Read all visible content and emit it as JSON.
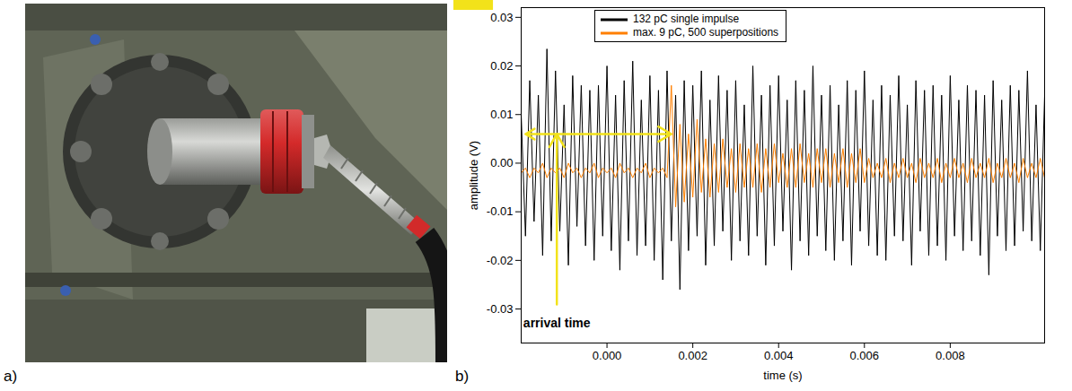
{
  "figure": {
    "panel_labels": [
      "a)",
      "b)"
    ]
  },
  "chart_data": {
    "type": "line",
    "x_label": "time (s)",
    "y_label": "amplitude (V)",
    "xlim": [
      -0.002,
      0.0102
    ],
    "ylim": [
      -0.037,
      0.032
    ],
    "xticks": [
      {
        "value": 0,
        "label": "0.000"
      },
      0.002,
      0.004,
      0.006,
      0.008
    ],
    "yticks": [
      -0.03,
      -0.02,
      -0.01,
      {
        "value": 0,
        "label": "0.00"
      },
      0.01,
      0.02,
      0.03
    ],
    "grid": false,
    "legend": "top",
    "x": [
      -0.002,
      -0.0019,
      -0.0018,
      -0.0017,
      -0.0016,
      -0.0015,
      -0.0014,
      -0.0013,
      -0.0012,
      -0.0011,
      -0.001,
      -0.0009,
      -0.0008,
      -0.0007,
      -0.0006,
      -0.0005,
      -0.0004,
      -0.0003,
      -0.0002,
      -0.0001,
      0,
      0.0001,
      0.0002,
      0.0003,
      0.0004,
      0.0005,
      0.0006,
      0.0007,
      0.0008,
      0.0009,
      0.001,
      0.0011,
      0.0012,
      0.0013,
      0.0014,
      0.0015,
      0.0016,
      0.0017,
      0.0018,
      0.0019,
      0.002,
      0.0021,
      0.0022,
      0.0023,
      0.0024,
      0.0025,
      0.0026,
      0.0027,
      0.0028,
      0.0029,
      0.003,
      0.0031,
      0.0032,
      0.0033,
      0.0034,
      0.0035,
      0.0036,
      0.0037,
      0.0038,
      0.0039,
      0.004,
      0.0041,
      0.0042,
      0.0043,
      0.0044,
      0.0045,
      0.0046,
      0.0047,
      0.0048,
      0.0049,
      0.005,
      0.0051,
      0.0052,
      0.0053,
      0.0054,
      0.0055,
      0.0056,
      0.0057,
      0.0058,
      0.0059,
      0.006,
      0.0061,
      0.0062,
      0.0063,
      0.0064,
      0.0065,
      0.0066,
      0.0067,
      0.0068,
      0.0069,
      0.007,
      0.0071,
      0.0072,
      0.0073,
      0.0074,
      0.0075,
      0.0076,
      0.0077,
      0.0078,
      0.0079,
      0.008,
      0.0081,
      0.0082,
      0.0083,
      0.0084,
      0.0085,
      0.0086,
      0.0087,
      0.0088,
      0.0089,
      0.009,
      0.0091,
      0.0092,
      0.0093,
      0.0094,
      0.0095,
      0.0096,
      0.0097,
      0.0098,
      0.0099,
      0.01,
      0.0101,
      0.0102
    ],
    "series": [
      {
        "name": "132 pC single impulse",
        "color": "#000000",
        "values": [
          0.01,
          -0.015,
          0.017,
          -0.012,
          0.014,
          -0.019,
          0.0235,
          -0.016,
          0.019,
          -0.014,
          0.012,
          -0.021,
          0.018,
          -0.013,
          0.016,
          -0.017,
          0.015,
          -0.02,
          0.016,
          -0.015,
          0.02,
          -0.018,
          0.014,
          -0.022,
          0.017,
          -0.016,
          0.021,
          -0.019,
          0.013,
          -0.017,
          0.018,
          -0.02,
          0.015,
          -0.024,
          0.019,
          -0.016,
          0.014,
          -0.026,
          0.017,
          -0.018,
          0.016,
          -0.015,
          0.019,
          -0.021,
          0.013,
          -0.017,
          0.018,
          -0.014,
          0.015,
          -0.02,
          0.017,
          -0.016,
          0.012,
          -0.019,
          0.02,
          -0.015,
          0.014,
          -0.021,
          0.016,
          -0.017,
          0.018,
          -0.014,
          0.013,
          -0.022,
          0.017,
          -0.016,
          0.015,
          -0.019,
          0.02,
          -0.015,
          0.014,
          -0.018,
          0.016,
          -0.02,
          0.012,
          -0.016,
          0.017,
          -0.021,
          0.015,
          -0.014,
          0.019,
          -0.017,
          0.013,
          -0.019,
          0.016,
          -0.02,
          0.014,
          -0.015,
          0.018,
          -0.016,
          0.012,
          -0.021,
          0.017,
          -0.014,
          0.015,
          -0.019,
          0.016,
          -0.017,
          0.014,
          -0.02,
          0.018,
          -0.015,
          0.013,
          -0.018,
          0.016,
          -0.016,
          0.015,
          -0.019,
          0.014,
          -0.023,
          0.017,
          -0.015,
          0.013,
          -0.018,
          0.016,
          -0.017,
          0.015,
          -0.014,
          0.019,
          -0.016,
          0.012,
          -0.018,
          0.014
        ]
      },
      {
        "name": "max. 9 pC, 500 superpositions",
        "color": "#ff7f00",
        "values": [
          -0.002,
          -0.001,
          -0.003,
          -0.001,
          -0.002,
          0.0,
          -0.003,
          -0.001,
          -0.002,
          -0.001,
          -0.003,
          0.0,
          -0.002,
          -0.001,
          -0.003,
          -0.001,
          -0.002,
          0.0,
          -0.003,
          -0.001,
          -0.002,
          -0.001,
          -0.003,
          0.0,
          -0.002,
          -0.001,
          -0.003,
          -0.001,
          -0.002,
          0.0,
          -0.003,
          -0.001,
          -0.002,
          -0.001,
          -0.003,
          0.016,
          -0.009,
          0.008,
          -0.008,
          0.006,
          -0.007,
          0.009,
          -0.006,
          0.005,
          -0.007,
          0.004,
          -0.006,
          0.005,
          -0.005,
          0.003,
          -0.006,
          0.004,
          -0.005,
          0.003,
          -0.005,
          0.004,
          -0.006,
          0.003,
          -0.005,
          0.004,
          -0.004,
          0.002,
          -0.005,
          0.003,
          -0.005,
          0.004,
          -0.004,
          0.002,
          -0.005,
          0.003,
          -0.004,
          0.003,
          -0.005,
          0.002,
          -0.004,
          0.003,
          -0.005,
          0.002,
          -0.004,
          0.003,
          -0.004,
          0.001,
          -0.003,
          0.0,
          -0.003,
          0.001,
          -0.004,
          0.0,
          -0.003,
          0.001,
          -0.003,
          0.0,
          -0.004,
          0.001,
          -0.003,
          0.0,
          -0.003,
          0.001,
          -0.004,
          0.0,
          -0.003,
          0.001,
          -0.003,
          0.0,
          -0.004,
          0.001,
          -0.003,
          0.0,
          -0.003,
          0.001,
          -0.004,
          0.0,
          -0.003,
          0.001,
          -0.003,
          0.0,
          -0.004,
          0.001,
          -0.003,
          0.0,
          -0.003,
          0.001,
          -0.003
        ]
      }
    ],
    "annotations": [
      {
        "text": "arrival time",
        "x": [
          -0.0019,
          0.0015
        ]
      }
    ]
  }
}
